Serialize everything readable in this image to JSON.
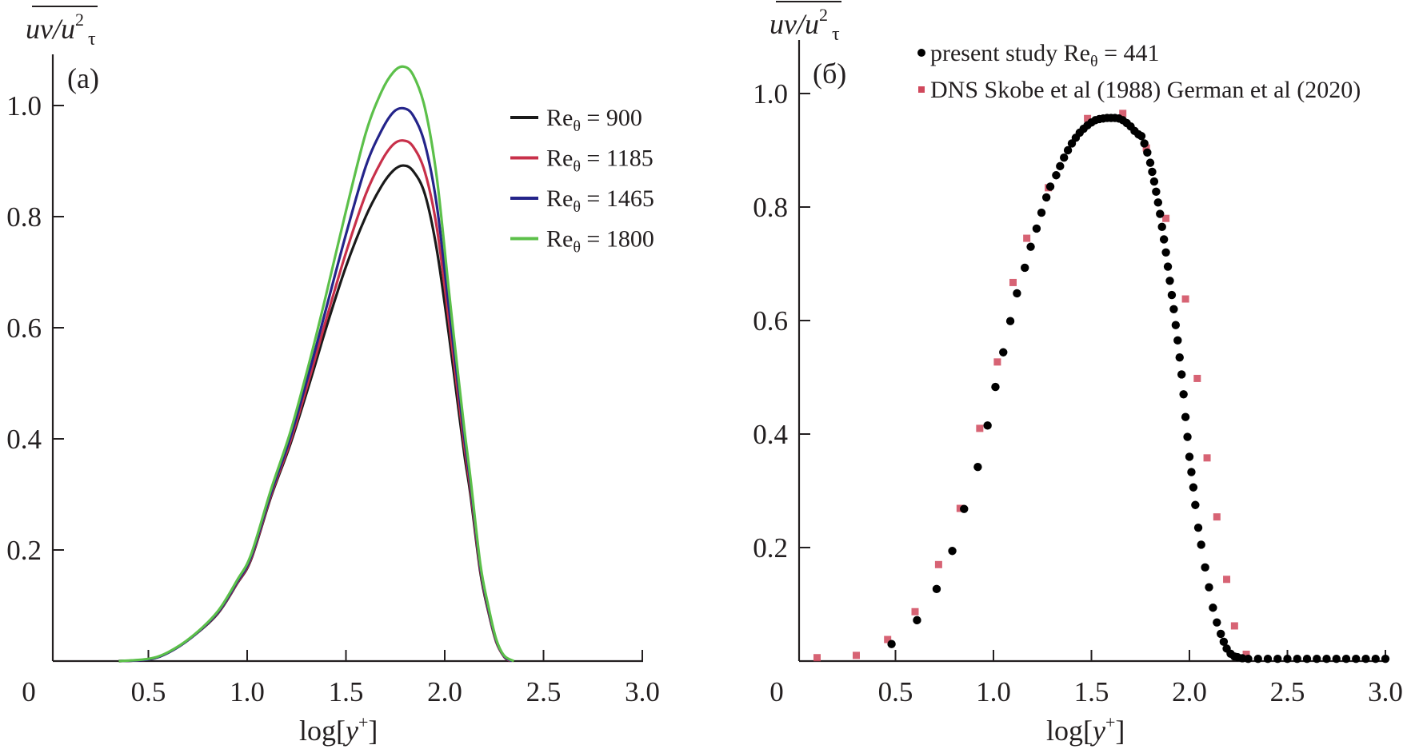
{
  "chart_data": [
    {
      "type": "line",
      "panel_label": "(a)",
      "title": "",
      "xlabel": "log[y+]",
      "ylabel": "uv/u_τ^2",
      "xlim": [
        0,
        3.0
      ],
      "ylim": [
        0,
        1.08
      ],
      "xticks": [
        0,
        0.5,
        1.0,
        1.5,
        2.0,
        2.5,
        3.0
      ],
      "xtick_labels": [
        "0",
        "0.5",
        "1.0",
        "1.5",
        "2.0",
        "2.5",
        "3.0"
      ],
      "yticks": [
        0.2,
        0.4,
        0.6,
        0.8,
        1.0
      ],
      "ytick_labels": [
        "0.2",
        "0.4",
        "0.6",
        "0.8",
        "1.0"
      ],
      "grid": false,
      "legend_position": "top-right",
      "series": [
        {
          "name": "Re_θ = 900",
          "legend_prefix": "Re",
          "legend_sub": "θ",
          "legend_value": " = 900",
          "color": "#1a1a1a",
          "x": [
            0.35,
            0.5,
            0.6,
            0.72,
            0.85,
            0.95,
            1.02,
            1.12,
            1.22,
            1.32,
            1.4,
            1.5,
            1.6,
            1.68,
            1.74,
            1.79,
            1.84,
            1.9,
            1.96,
            2.02,
            2.06,
            2.1,
            2.13,
            2.18,
            2.22,
            2.26,
            2.3,
            2.33
          ],
          "y": [
            0.0,
            0.003,
            0.015,
            0.043,
            0.085,
            0.14,
            0.183,
            0.295,
            0.392,
            0.505,
            0.6,
            0.71,
            0.8,
            0.855,
            0.883,
            0.892,
            0.882,
            0.84,
            0.74,
            0.59,
            0.48,
            0.37,
            0.3,
            0.16,
            0.09,
            0.035,
            0.008,
            0.0
          ]
        },
        {
          "name": "Re_θ = 1185",
          "legend_prefix": "Re",
          "legend_sub": "θ",
          "legend_value": " = 1185",
          "color": "#c8304a",
          "x": [
            0.35,
            0.5,
            0.6,
            0.72,
            0.85,
            0.95,
            1.02,
            1.12,
            1.22,
            1.32,
            1.4,
            1.5,
            1.6,
            1.68,
            1.74,
            1.79,
            1.84,
            1.9,
            1.96,
            2.02,
            2.06,
            2.1,
            2.13,
            2.18,
            2.22,
            2.26,
            2.3,
            2.335
          ],
          "y": [
            0.0,
            0.003,
            0.015,
            0.043,
            0.086,
            0.141,
            0.185,
            0.298,
            0.397,
            0.515,
            0.615,
            0.735,
            0.84,
            0.9,
            0.93,
            0.937,
            0.926,
            0.88,
            0.78,
            0.615,
            0.5,
            0.385,
            0.31,
            0.165,
            0.093,
            0.036,
            0.008,
            0.0
          ]
        },
        {
          "name": "Re_θ = 1465",
          "legend_prefix": "Re",
          "legend_sub": "θ",
          "legend_value": " = 1465",
          "color": "#24248a",
          "x": [
            0.35,
            0.5,
            0.6,
            0.72,
            0.85,
            0.95,
            1.02,
            1.12,
            1.22,
            1.32,
            1.4,
            1.5,
            1.6,
            1.68,
            1.74,
            1.79,
            1.84,
            1.9,
            1.96,
            2.02,
            2.06,
            2.1,
            2.13,
            2.18,
            2.22,
            2.26,
            2.3,
            2.34
          ],
          "y": [
            0.0,
            0.003,
            0.015,
            0.043,
            0.087,
            0.143,
            0.188,
            0.302,
            0.404,
            0.528,
            0.635,
            0.768,
            0.89,
            0.955,
            0.988,
            0.995,
            0.982,
            0.93,
            0.82,
            0.64,
            0.52,
            0.4,
            0.32,
            0.17,
            0.096,
            0.038,
            0.009,
            0.0
          ]
        },
        {
          "name": "Re_θ = 1800",
          "legend_prefix": "Re",
          "legend_sub": "θ",
          "legend_value": " = 1800",
          "color": "#5cc04a",
          "x": [
            0.35,
            0.5,
            0.6,
            0.72,
            0.85,
            0.95,
            1.02,
            1.12,
            1.22,
            1.32,
            1.4,
            1.5,
            1.6,
            1.68,
            1.74,
            1.79,
            1.84,
            1.9,
            1.96,
            2.02,
            2.06,
            2.1,
            2.13,
            2.18,
            2.22,
            2.26,
            2.3,
            2.35
          ],
          "y": [
            0.0,
            0.004,
            0.016,
            0.044,
            0.089,
            0.146,
            0.192,
            0.308,
            0.414,
            0.545,
            0.66,
            0.81,
            0.95,
            1.025,
            1.06,
            1.07,
            1.055,
            0.995,
            0.87,
            0.67,
            0.54,
            0.415,
            0.33,
            0.175,
            0.1,
            0.04,
            0.01,
            0.0
          ]
        }
      ]
    },
    {
      "type": "scatter",
      "panel_label": "(б)",
      "title": "",
      "xlabel": "log[y+]",
      "ylabel": "uv/u_τ^2",
      "xlim": [
        0,
        3.0
      ],
      "ylim": [
        0,
        1.09
      ],
      "xticks": [
        0,
        0.5,
        1.0,
        1.5,
        2.0,
        2.5,
        3.0
      ],
      "xtick_labels": [
        "0",
        "0.5",
        "1.0",
        "1.5",
        "2.0",
        "2.5",
        "3.0"
      ],
      "yticks": [
        0.2,
        0.4,
        0.6,
        0.8,
        1.0
      ],
      "ytick_labels": [
        "0.2",
        "0.4",
        "0.6",
        "0.8",
        "1.0"
      ],
      "grid": false,
      "legend_position": "top-right",
      "series": [
        {
          "name": "present study Re_θ = 441",
          "legend_text_a": "present study Re",
          "legend_sub": "θ",
          "legend_text_b": " = 441",
          "color": "#000000",
          "marker": "circle",
          "x": [
            0.48,
            0.61,
            0.71,
            0.79,
            0.85,
            0.92,
            0.97,
            1.01,
            1.05,
            1.086,
            1.12,
            1.16,
            1.19,
            1.22,
            1.245,
            1.27,
            1.29,
            1.32,
            1.34,
            1.36,
            1.38,
            1.4,
            1.42,
            1.44,
            1.46,
            1.48,
            1.5,
            1.52,
            1.54,
            1.56,
            1.58,
            1.6,
            1.62,
            1.64,
            1.66,
            1.68,
            1.7,
            1.72,
            1.74,
            1.755,
            1.77,
            1.785,
            1.8,
            1.81,
            1.82,
            1.83,
            1.84,
            1.85,
            1.86,
            1.87,
            1.88,
            1.89,
            1.9,
            1.91,
            1.92,
            1.93,
            1.94,
            1.95,
            1.96,
            1.97,
            1.98,
            1.99,
            2.0,
            2.01,
            2.02,
            2.03,
            2.045,
            2.06,
            2.08,
            2.1,
            2.12,
            2.14,
            2.16,
            2.175,
            2.19,
            2.21,
            2.23,
            2.245,
            2.27,
            2.3,
            2.35,
            2.4,
            2.45,
            2.5,
            2.55,
            2.6,
            2.65,
            2.7,
            2.75,
            2.8,
            2.85,
            2.9,
            2.95,
            3.0
          ],
          "y": [
            0.03,
            0.072,
            0.127,
            0.194,
            0.268,
            0.342,
            0.415,
            0.483,
            0.544,
            0.599,
            0.648,
            0.693,
            0.73,
            0.762,
            0.79,
            0.817,
            0.836,
            0.856,
            0.872,
            0.887,
            0.9,
            0.912,
            0.922,
            0.931,
            0.938,
            0.944,
            0.949,
            0.953,
            0.955,
            0.956,
            0.957,
            0.957,
            0.957,
            0.956,
            0.953,
            0.948,
            0.942,
            0.934,
            0.928,
            0.925,
            0.912,
            0.896,
            0.878,
            0.862,
            0.845,
            0.827,
            0.808,
            0.788,
            0.765,
            0.743,
            0.72,
            0.695,
            0.67,
            0.645,
            0.62,
            0.592,
            0.565,
            0.535,
            0.505,
            0.47,
            0.43,
            0.395,
            0.36,
            0.333,
            0.306,
            0.275,
            0.235,
            0.205,
            0.165,
            0.13,
            0.094,
            0.068,
            0.048,
            0.034,
            0.022,
            0.013,
            0.008,
            0.007,
            0.005,
            0.004,
            0.004,
            0.004,
            0.004,
            0.004,
            0.004,
            0.004,
            0.004,
            0.004,
            0.004,
            0.004,
            0.004,
            0.004,
            0.004,
            0.004
          ]
        },
        {
          "name": "DNS Skobe et al (1988) German et al (2020)",
          "legend_text_a": "DNS Skobe et al (1988) German et al (2020)",
          "legend_sub": "",
          "legend_text_b": "",
          "color": "#d0485c",
          "marker": "square",
          "x": [
            0.1,
            0.3,
            0.46,
            0.6,
            0.72,
            0.83,
            0.93,
            1.02,
            1.1,
            1.17,
            1.28,
            1.48,
            1.66,
            1.78,
            1.88,
            1.98,
            2.04,
            2.09,
            2.14,
            2.19,
            2.23,
            2.29
          ],
          "y": [
            0.006,
            0.01,
            0.038,
            0.087,
            0.17,
            0.269,
            0.41,
            0.527,
            0.667,
            0.745,
            0.834,
            0.956,
            0.965,
            0.904,
            0.78,
            0.638,
            0.498,
            0.358,
            0.254,
            0.144,
            0.062,
            0.012
          ]
        }
      ]
    }
  ],
  "panels": [
    {
      "panel_label": "(a)",
      "ylabel_main": "uv/u",
      "ylabel_sup": "2",
      "ylabel_sub": "τ",
      "xlabel_main": "log[",
      "xlabel_var": "y",
      "xlabel_sup": "+",
      "xlabel_end": "]"
    },
    {
      "panel_label": "(б)",
      "ylabel_main": "uv/u",
      "ylabel_sup": "2",
      "ylabel_sub": "τ",
      "xlabel_main": "log[",
      "xlabel_var": "y",
      "xlabel_sup": "+",
      "xlabel_end": "]"
    }
  ]
}
